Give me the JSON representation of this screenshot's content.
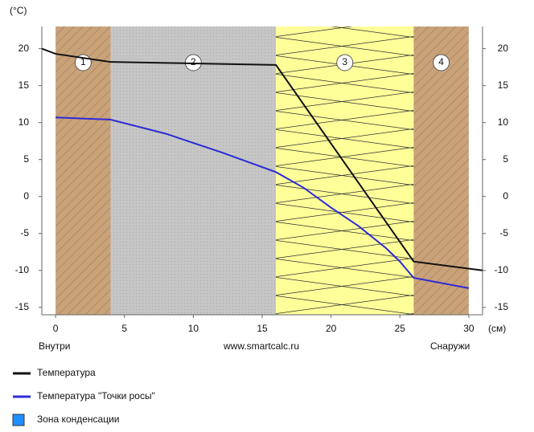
{
  "chart_data": {
    "type": "line",
    "y_unit": "(°C)",
    "x_unit": "(см)",
    "left_note": "Внутри",
    "center_note": "www.smartcalc.ru",
    "right_note": "Снаружи",
    "xlim": [
      -1,
      31
    ],
    "xticks": [
      0,
      5,
      10,
      15,
      20,
      25,
      30
    ],
    "ylim": [
      -16,
      23
    ],
    "yticks": [
      -15,
      -10,
      -5,
      0,
      5,
      10,
      15,
      20
    ],
    "y2lim": [
      -16,
      23
    ],
    "y2ticks": [
      -15,
      -10,
      -5,
      0,
      5,
      10,
      15,
      20
    ],
    "layers": [
      {
        "label": "1",
        "from": 0,
        "to": 4,
        "color": "#c9a27a"
      },
      {
        "label": "2",
        "from": 4,
        "to": 16,
        "color": "#c6c6c6"
      },
      {
        "label": "3",
        "from": 16,
        "to": 26,
        "color": "#ffff99"
      },
      {
        "label": "4",
        "from": 26,
        "to": 30,
        "color": "#c9a27a"
      }
    ],
    "series": [
      {
        "name": "Температура",
        "color": "#111111",
        "x": [
          -1,
          0,
          4,
          16,
          26,
          31
        ],
        "values": [
          20,
          19.3,
          18.2,
          17.8,
          -8.8,
          -10
        ]
      },
      {
        "name": "Температура \"Точки росы\"",
        "color": "#2b2bd6",
        "x": [
          0,
          4,
          8,
          12,
          16,
          18,
          20,
          22,
          24,
          25,
          26,
          30
        ],
        "values": [
          10.7,
          10.4,
          8.5,
          6,
          3.3,
          1.2,
          -1.5,
          -4,
          -7,
          -8.8,
          -11,
          -12.4
        ]
      }
    ],
    "condensation_zone": {
      "name": "Зона конденсации",
      "color": "#1e8fff"
    }
  }
}
